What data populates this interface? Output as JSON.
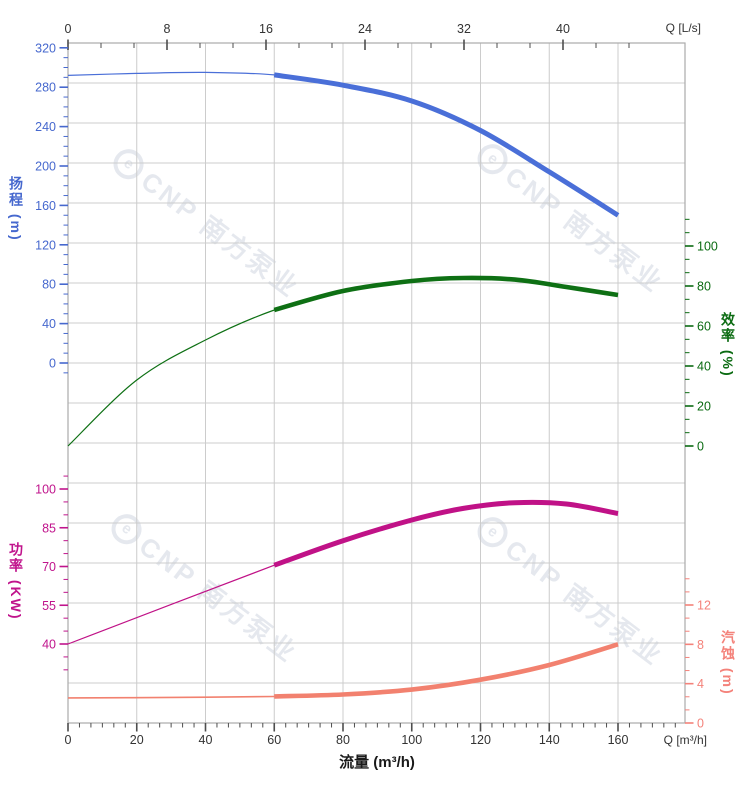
{
  "watermark": {
    "logo_letter": "e",
    "text": "CNP 南方泵业"
  },
  "chart_data": {
    "type": "line",
    "title": "",
    "background": "#ffffff",
    "grid": true,
    "grid_color": "#cccccc",
    "border_color": "#ababab",
    "x_axis_bottom": {
      "title": "流量 (m³/h)",
      "corner_label": "Q [m³/h]",
      "unit": "m³/h",
      "ticks": [
        0,
        20,
        40,
        60,
        80,
        100,
        120,
        140,
        160
      ],
      "minor_step": 3.3333,
      "range_shown": [
        0,
        179.5
      ],
      "tick_color": "#4d4d4d",
      "label_color": "#333333"
    },
    "x_axis_top": {
      "corner_label": "Q [L/s]",
      "unit": "L/s",
      "ticks": [
        0,
        8,
        16,
        24,
        32,
        40
      ],
      "minor_step": 2.6667,
      "tick_color": "#4d4d4d",
      "label_color": "#333333"
    },
    "y_axes": [
      {
        "id": "head",
        "title": "扬程 (m)",
        "side": "left",
        "color": "#4668ce",
        "ticks": [
          0,
          40,
          80,
          120,
          160,
          200,
          240,
          280,
          320
        ],
        "minor_step": 10
      },
      {
        "id": "efficiency",
        "title": "效率 (%)",
        "side": "right",
        "color": "#0b6b12",
        "ticks": [
          0,
          20,
          40,
          60,
          80,
          100
        ],
        "minor_step": 6.6667
      },
      {
        "id": "power",
        "title": "功率 (KW)",
        "side": "left",
        "color": "#c0148c",
        "ticks": [
          40,
          55,
          70,
          85,
          100
        ],
        "minor_step": 5
      },
      {
        "id": "npsh",
        "title": "汽蚀 (m)",
        "side": "right",
        "color": "#f4827a",
        "ticks": [
          0,
          4,
          8,
          12
        ],
        "minor_step": 1.3333
      }
    ],
    "series": [
      {
        "name": "head",
        "axis": "head",
        "color": "#4a6fd8",
        "bold_from": 60,
        "x": [
          0,
          20,
          40,
          60,
          80,
          100,
          120,
          140,
          160
        ],
        "y": [
          292,
          294,
          295,
          292.5,
          282,
          266,
          236,
          194,
          150
        ]
      },
      {
        "name": "efficiency",
        "axis": "efficiency",
        "color": "#0e7014",
        "bold_from": 60,
        "x": [
          0,
          20,
          40,
          60,
          80,
          100,
          115,
          130,
          145,
          160
        ],
        "y": [
          0,
          33,
          53,
          68,
          77.5,
          82.5,
          84,
          83.2,
          79.5,
          75.5
        ]
      },
      {
        "name": "power",
        "axis": "power",
        "color": "#c01287",
        "bold_from": 60,
        "x": [
          0,
          60,
          80,
          100,
          115,
          130,
          145,
          160
        ],
        "y": [
          40,
          70.5,
          80,
          88,
          92.5,
          94.7,
          94.2,
          90.5
        ]
      },
      {
        "name": "npsh",
        "axis": "npsh",
        "color": "#f2816f",
        "bold_from": 60,
        "x": [
          0,
          30,
          60,
          80,
          100,
          120,
          140,
          160
        ],
        "y": [
          2.55,
          2.6,
          2.7,
          2.9,
          3.4,
          4.4,
          5.9,
          8.0
        ]
      }
    ]
  }
}
